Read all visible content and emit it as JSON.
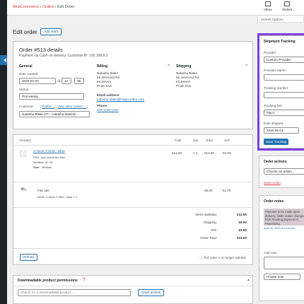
{
  "breadcrumb": {
    "part1": "WooCommerce",
    "sep": "/",
    "part2": "Orders",
    "part3": "Edit Order"
  },
  "toolbar": {
    "inbox": "Inbox",
    "orders": "Orders",
    "screen_options": "Screen Options"
  },
  "page": {
    "title": "Edit order",
    "add_order": "Add order"
  },
  "order": {
    "title": "Order #513 details",
    "subtitle": "Payment via Cash on delivery. Customer IP: 192.168.0.1",
    "general": {
      "heading": "General",
      "date_label": "Date created:",
      "date": "2020-04-30",
      "at": "@",
      "hour": "12",
      "minute": "05",
      "status_label": "Status:",
      "status": "Processing",
      "customer_label": "Customer:",
      "profile_link": "Profile →",
      "other_orders_link": "View other orders →",
      "customer": "Natasha Blake (#7 – natasha.blake@..."
    },
    "billing": {
      "heading": "Billing",
      "lines": [
        "Natasha Blake",
        "55 Jesmond Rd",
        "KILMAHA",
        "PA35 3AG"
      ],
      "email_label": "Email address:",
      "email": "natasha.blake@maiyourdee.com",
      "phone_label": "Phone:",
      "phone": "078 1234 1234"
    },
    "shipping": {
      "heading": "Shipping",
      "lines": [
        "Natasha Blake",
        "55 Jesmond Rd",
        "KILMAHA",
        "PA35 3AG"
      ]
    }
  },
  "items": {
    "headers": {
      "product": "Product",
      "cost": "Cost",
      "qty": "Qty",
      "total": "Total",
      "vat": "VAT"
    },
    "product": {
      "name": "V-Neck T-Shirt - Blue",
      "sku": "SKU: woo-vneck-tee-blue",
      "variation": "Variation ID: 20",
      "size": "Size:",
      "size_val": "Medium",
      "cost": "€12.50",
      "qty": "× 1",
      "total": "€12.50",
      "vat": "€2.50"
    },
    "shipping": {
      "name": "Flat rate",
      "items": "Items: V-Neck T-Shirt - Blue × 1",
      "total": "€5.00",
      "vat": "€1.00"
    },
    "totals": [
      {
        "label": "Items Subtotal:",
        "value": "€12.50"
      },
      {
        "label": "Shipping:",
        "value": "€5.00"
      },
      {
        "label": "VAT:",
        "value": "€3.50"
      },
      {
        "label": "Order Total:",
        "value": "€21.00"
      }
    ],
    "refund": "Refund",
    "not_editable": "This order is no longer editable."
  },
  "downloads": {
    "heading": "Downloadable product permissions",
    "placeholder": "Search for a downloadable product...",
    "grant": "Grant access"
  },
  "tracking": {
    "heading": "Shipment Tracking",
    "provider_label": "Provider:",
    "provider": "Custom Provider",
    "provider_name_label": "Provider Name:",
    "tracking_number_label": "Tracking number:",
    "tracking_link_label": "Tracking link:",
    "tracking_link": "http://",
    "date_label": "Date shipped:",
    "date": "2020-05-01",
    "save": "Save Tracking"
  },
  "actions": {
    "heading": "Order actions",
    "select": "Choose an action...",
    "trash": "Move to bin"
  },
  "notes": {
    "heading": "Order notes",
    "note": "Payment to be made upon delivery. Order status changed from Pending payment to Processing.",
    "meta": "April 30, 2020 at 12:05 pm",
    "add_label": "Add note",
    "type": "Private note"
  }
}
